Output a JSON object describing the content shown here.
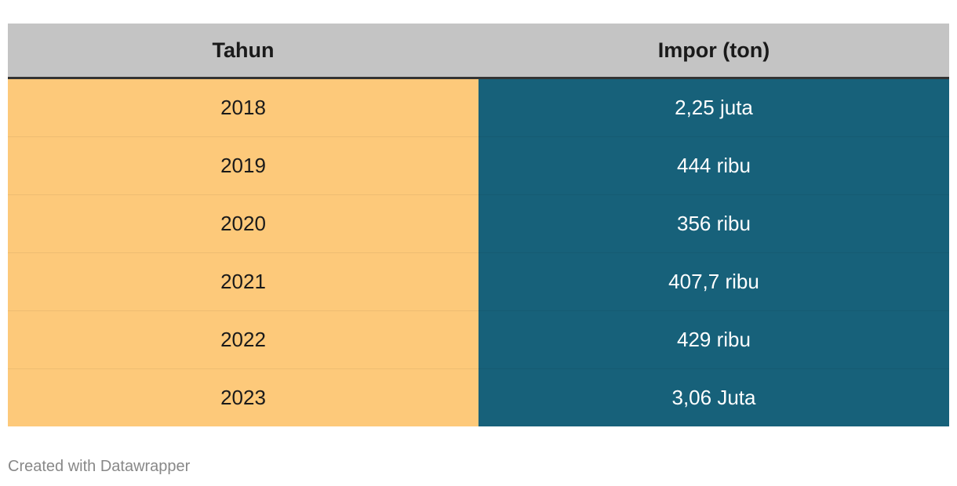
{
  "table": {
    "columns": [
      "Tahun",
      "Impor (ton)"
    ],
    "rows": [
      [
        "2018",
        "2,25 juta"
      ],
      [
        "2019",
        "444 ribu"
      ],
      [
        "2020",
        "356 ribu"
      ],
      [
        "2021",
        "407,7 ribu"
      ],
      [
        "2022",
        "429 ribu"
      ],
      [
        "2023",
        "3,06 Juta"
      ]
    ]
  },
  "footer": "Created with Datawrapper"
}
